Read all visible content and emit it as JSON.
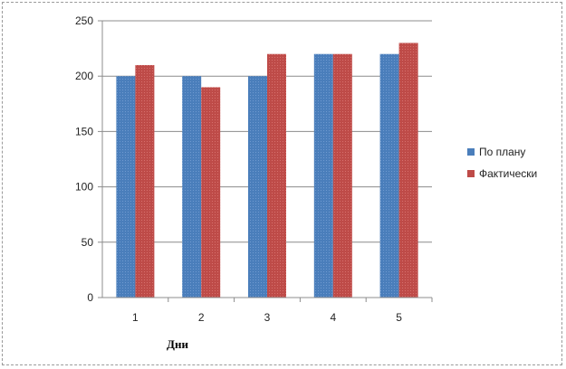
{
  "chart_data": {
    "type": "bar",
    "title": "",
    "xlabel": "Дни",
    "ylabel": "",
    "categories": [
      "1",
      "2",
      "3",
      "4",
      "5"
    ],
    "series": [
      {
        "name": "По плану",
        "values": [
          200,
          200,
          200,
          220,
          220
        ],
        "color": "#4a7ebb"
      },
      {
        "name": "Фактически",
        "values": [
          210,
          190,
          220,
          220,
          230
        ],
        "color": "#be4b48"
      }
    ],
    "ylim": [
      0,
      250
    ],
    "yticks": [
      "0",
      "50",
      "100",
      "150",
      "200",
      "250"
    ],
    "grid": true,
    "legend": "right"
  }
}
